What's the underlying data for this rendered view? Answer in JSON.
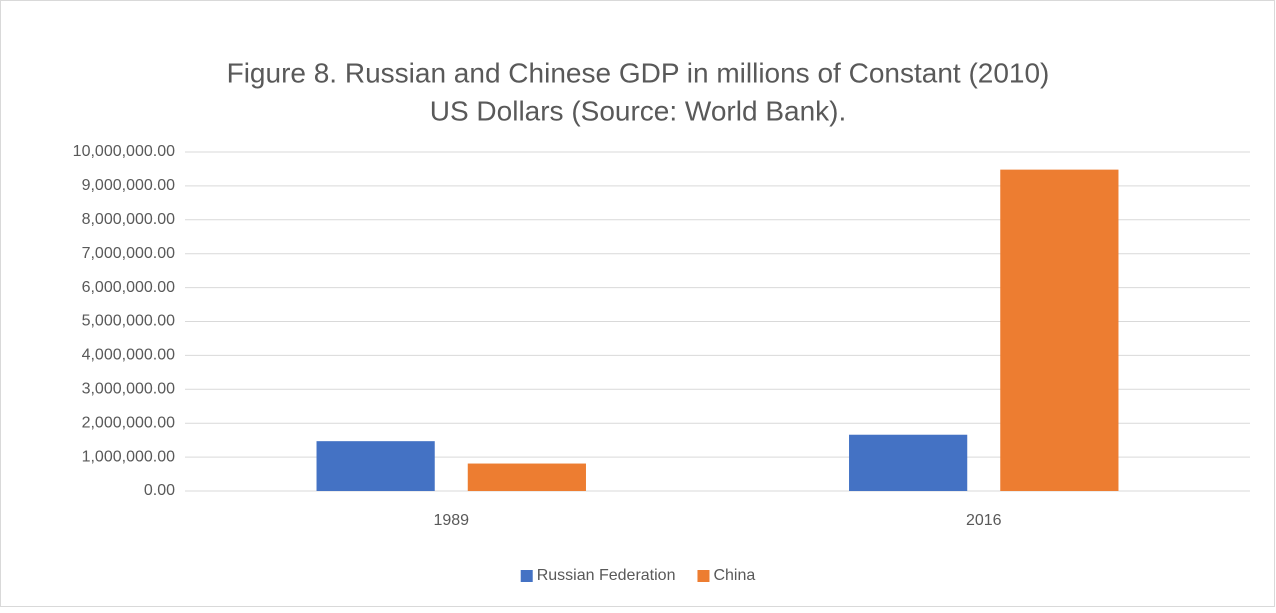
{
  "chart_data": {
    "type": "bar",
    "title": [
      "Figure 8. Russian and Chinese GDP in millions of Constant (2010)",
      "US Dollars (Source: World Bank)."
    ],
    "categories": [
      "1989",
      "2016"
    ],
    "series": [
      {
        "name": "Russian Federation",
        "color": "#4472c4",
        "values": [
          1470000,
          1660000
        ]
      },
      {
        "name": "China",
        "color": "#ed7d31",
        "values": [
          810000,
          9480000
        ]
      }
    ],
    "ylim": [
      0,
      10000000
    ],
    "yticks": [
      {
        "value": 0,
        "label": "0.00"
      },
      {
        "value": 1000000,
        "label": "1,000,000.00"
      },
      {
        "value": 2000000,
        "label": "2,000,000.00"
      },
      {
        "value": 3000000,
        "label": "3,000,000.00"
      },
      {
        "value": 4000000,
        "label": "4,000,000.00"
      },
      {
        "value": 5000000,
        "label": "5,000,000.00"
      },
      {
        "value": 6000000,
        "label": "6,000,000.00"
      },
      {
        "value": 7000000,
        "label": "7,000,000.00"
      },
      {
        "value": 8000000,
        "label": "8,000,000.00"
      },
      {
        "value": 9000000,
        "label": "9,000,000.00"
      },
      {
        "value": 10000000,
        "label": "10,000,000.00"
      }
    ],
    "grid": true,
    "legend": "bottom"
  }
}
